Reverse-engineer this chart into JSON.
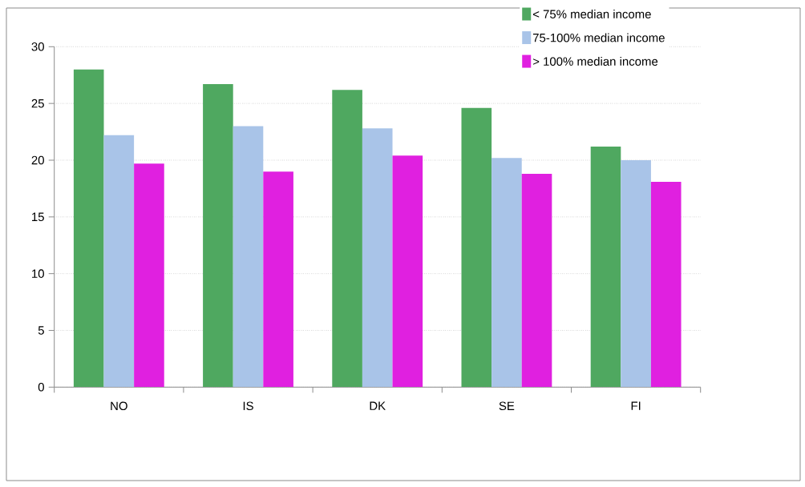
{
  "chart_data": {
    "type": "bar",
    "categories": [
      "NO",
      "IS",
      "DK",
      "SE",
      "FI"
    ],
    "series": [
      {
        "name": "< 75% median income",
        "color": "#4fa860",
        "values": [
          28.0,
          26.7,
          26.2,
          24.6,
          21.2
        ]
      },
      {
        "name": "75-100% median income",
        "color": "#a9c4e8",
        "values": [
          22.2,
          23.0,
          22.8,
          20.2,
          20.0
        ]
      },
      {
        "name": "> 100% median income",
        "color": "#e020e0",
        "values": [
          19.7,
          19.0,
          20.4,
          18.8,
          18.1
        ]
      }
    ],
    "ylim": [
      0,
      30
    ],
    "yticks": [
      0,
      5,
      10,
      15,
      20,
      25,
      30
    ],
    "grid": "y",
    "legend": "top right"
  }
}
